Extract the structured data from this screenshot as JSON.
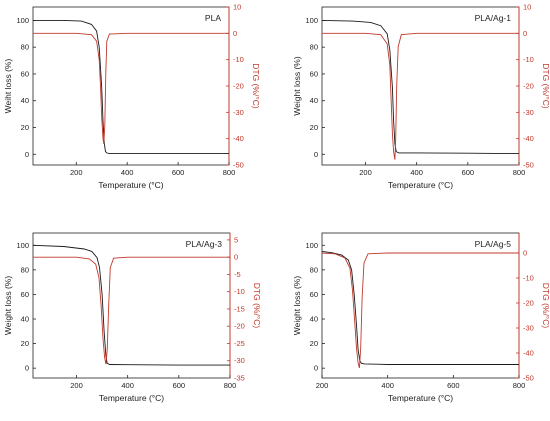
{
  "colors": {
    "weight": "#1a1a1a",
    "dtg": "#c0392b",
    "axis": "#222222",
    "dtg_axis": "#c0392b"
  },
  "chart_data": [
    {
      "type": "line",
      "panel_label": "PLA",
      "xlabel": "Temperature (°C)",
      "ylabel": "Weiht loss (%)",
      "y2label": "DTG (%/°C)",
      "xlim": [
        30,
        800
      ],
      "ylim": [
        -8,
        110
      ],
      "y2lim": [
        -50,
        10
      ],
      "xticks": [
        200,
        400,
        600,
        800
      ],
      "yticks": [
        0,
        20,
        40,
        60,
        80,
        100
      ],
      "y2ticks": [
        10,
        0,
        -10,
        -20,
        -30,
        -40,
        -50
      ],
      "grid": false,
      "series": [
        {
          "axis": "left",
          "x": [
            30,
            150,
            220,
            260,
            280,
            290,
            300,
            305,
            310,
            315,
            320,
            330,
            400,
            600,
            800
          ],
          "y": [
            100,
            100,
            99.5,
            97,
            92,
            80,
            50,
            25,
            8,
            2,
            1,
            0.5,
            0.5,
            0.5,
            0.5
          ]
        },
        {
          "axis": "right",
          "x": [
            30,
            200,
            260,
            280,
            290,
            295,
            300,
            305,
            308,
            312,
            316,
            320,
            330,
            400,
            800
          ],
          "y": [
            0,
            0,
            -0.5,
            -3,
            -10,
            -20,
            -32,
            -40,
            -42,
            -35,
            -15,
            -3,
            -0.3,
            0,
            0
          ]
        }
      ]
    },
    {
      "type": "line",
      "panel_label": "PLA/Ag-1",
      "xlabel": "Temperature (°C)",
      "ylabel": "Weight loss (%)",
      "y2label": "DTG (%/°C)",
      "xlim": [
        30,
        800
      ],
      "ylim": [
        -8,
        110
      ],
      "y2lim": [
        -50,
        10
      ],
      "xticks": [
        200,
        400,
        600,
        800
      ],
      "yticks": [
        0,
        20,
        40,
        60,
        80,
        100
      ],
      "y2ticks": [
        10,
        0,
        -10,
        -20,
        -30,
        -40,
        -50
      ],
      "grid": false,
      "series": [
        {
          "axis": "left",
          "x": [
            30,
            150,
            220,
            260,
            285,
            295,
            305,
            310,
            315,
            320,
            330,
            400,
            600,
            800
          ],
          "y": [
            100,
            99.5,
            98.5,
            96,
            90,
            78,
            50,
            25,
            8,
            2,
            1,
            1,
            0.8,
            0.5
          ]
        },
        {
          "axis": "right",
          "x": [
            30,
            200,
            260,
            285,
            295,
            300,
            305,
            310,
            315,
            318,
            322,
            328,
            340,
            400,
            800
          ],
          "y": [
            0,
            0,
            -0.5,
            -4,
            -12,
            -25,
            -38,
            -45,
            -48,
            -40,
            -20,
            -5,
            -0.5,
            0,
            0
          ]
        }
      ]
    },
    {
      "type": "line",
      "panel_label": "PLA/Ag-3",
      "xlabel": "Temperature (°C)",
      "ylabel": "Weight loss (%)",
      "y2label": "DTG (%/°C)",
      "xlim": [
        30,
        800
      ],
      "ylim": [
        -8,
        110
      ],
      "y2lim": [
        -35,
        7
      ],
      "xticks": [
        200,
        400,
        600,
        800
      ],
      "yticks": [
        0,
        20,
        40,
        60,
        80,
        100
      ],
      "y2ticks": [
        5,
        0,
        -5,
        -10,
        -15,
        -20,
        -25,
        -30,
        -35
      ],
      "grid": false,
      "series": [
        {
          "axis": "left",
          "x": [
            30,
            150,
            230,
            260,
            280,
            290,
            300,
            308,
            315,
            320,
            330,
            400,
            600,
            800
          ],
          "y": [
            100,
            99,
            97,
            95,
            90,
            82,
            60,
            30,
            10,
            4,
            3,
            2.8,
            2.5,
            2.5
          ]
        },
        {
          "axis": "right",
          "x": [
            30,
            200,
            250,
            275,
            288,
            296,
            304,
            310,
            315,
            320,
            326,
            332,
            345,
            400,
            800
          ],
          "y": [
            0,
            0,
            -0.5,
            -2,
            -6,
            -14,
            -24,
            -29,
            -31,
            -27,
            -14,
            -3,
            -0.3,
            0,
            0
          ]
        }
      ]
    },
    {
      "type": "line",
      "panel_label": "PLA/Ag-5",
      "xlabel": "Temperature (°C)",
      "ylabel": "Weight loss (%)",
      "y2label": "DTG (%/°C)",
      "xlim": [
        200,
        800
      ],
      "ylim": [
        -8,
        110
      ],
      "y2lim": [
        -50,
        8
      ],
      "xticks": [
        200,
        400,
        600,
        800
      ],
      "yticks": [
        0,
        20,
        40,
        60,
        80,
        100
      ],
      "y2ticks": [
        0,
        -10,
        -20,
        -30,
        -40,
        -50
      ],
      "grid": false,
      "series": [
        {
          "axis": "left",
          "x": [
            200,
            230,
            260,
            280,
            290,
            298,
            305,
            310,
            315,
            320,
            330,
            400,
            600,
            800
          ],
          "y": [
            95,
            94,
            92,
            88,
            80,
            60,
            35,
            15,
            6,
            4,
            3.5,
            3,
            3,
            3
          ]
        },
        {
          "axis": "right",
          "x": [
            200,
            240,
            270,
            285,
            293,
            300,
            305,
            310,
            314,
            318,
            322,
            328,
            340,
            400,
            800
          ],
          "y": [
            0,
            -0.3,
            -2,
            -6,
            -15,
            -28,
            -38,
            -44,
            -46,
            -38,
            -18,
            -4,
            -0.3,
            0,
            0
          ]
        }
      ]
    }
  ]
}
